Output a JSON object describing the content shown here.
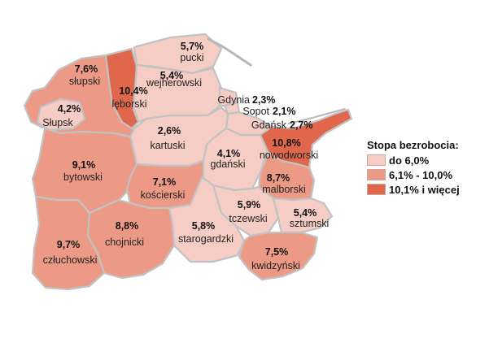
{
  "colors": {
    "low": "#f6cdc4",
    "mid": "#ec9a86",
    "high": "#e0674b",
    "border": "#c2c2c2",
    "coast": "#b8b8b8"
  },
  "legend": {
    "title": "Stopa bezrobocia:",
    "items": [
      {
        "label": "do 6,0%",
        "level": "low"
      },
      {
        "label": "6,1% - 10,0%",
        "level": "mid"
      },
      {
        "label": "10,1% i więcej",
        "level": "high"
      }
    ]
  },
  "regions": [
    {
      "id": "slupski",
      "name": "słupski",
      "value": "7,6%",
      "level": "mid"
    },
    {
      "id": "slupsk",
      "name": "Słupsk",
      "value": "4,2%",
      "level": "low"
    },
    {
      "id": "leborski",
      "name": "lęborski",
      "value": "10,4%",
      "level": "high"
    },
    {
      "id": "pucki",
      "name": "pucki",
      "value": "5,7%",
      "level": "low"
    },
    {
      "id": "wejherowski",
      "name": "wejherowski",
      "value": "5,4%",
      "level": "low"
    },
    {
      "id": "gdynia",
      "name": "Gdynia",
      "value": "2,3%",
      "level": "low"
    },
    {
      "id": "sopot",
      "name": "Sopot",
      "value": "2,1%",
      "level": "low"
    },
    {
      "id": "gdansk",
      "name": "Gdańsk",
      "value": "2,7%",
      "level": "low"
    },
    {
      "id": "kartuski",
      "name": "kartuski",
      "value": "2,6%",
      "level": "low"
    },
    {
      "id": "gdanski",
      "name": "gdański",
      "value": "4,1%",
      "level": "low"
    },
    {
      "id": "nowodworski",
      "name": "nowodworski",
      "value": "10,8%",
      "level": "high"
    },
    {
      "id": "bytowski",
      "name": "bytowski",
      "value": "9,1%",
      "level": "mid"
    },
    {
      "id": "koscierski",
      "name": "kościerski",
      "value": "7,1%",
      "level": "mid"
    },
    {
      "id": "malborski",
      "name": "malborski",
      "value": "8,7%",
      "level": "mid"
    },
    {
      "id": "tczewski",
      "name": "tczewski",
      "value": "5,9%",
      "level": "low"
    },
    {
      "id": "sztumski",
      "name": "sztumski",
      "value": "5,4%",
      "level": "low"
    },
    {
      "id": "chojnicki",
      "name": "chojnicki",
      "value": "8,8%",
      "level": "mid"
    },
    {
      "id": "starogardzki",
      "name": "starogardzki",
      "value": "5,8%",
      "level": "low"
    },
    {
      "id": "czluchowski",
      "name": "człuchowski",
      "value": "9,7%",
      "level": "mid"
    },
    {
      "id": "kwidzynski",
      "name": "kwidzyński",
      "value": "7,5%",
      "level": "mid"
    }
  ]
}
